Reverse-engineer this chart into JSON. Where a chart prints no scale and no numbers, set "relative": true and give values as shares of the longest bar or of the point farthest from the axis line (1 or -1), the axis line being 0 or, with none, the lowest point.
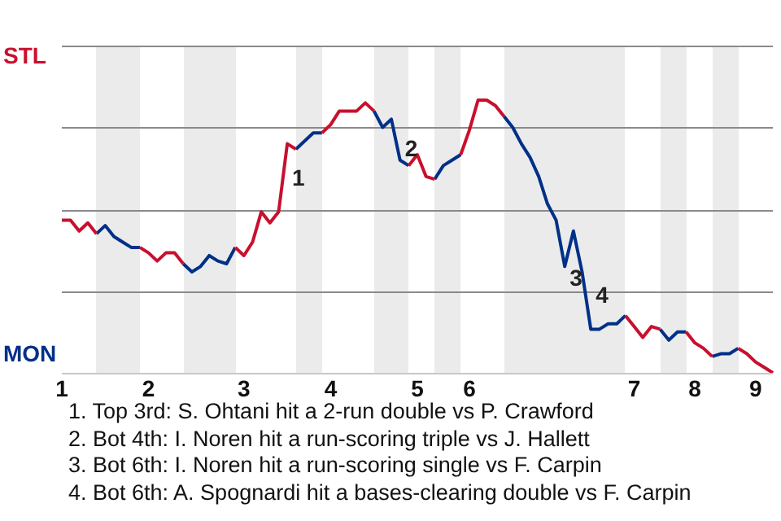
{
  "chart_data": {
    "type": "line",
    "relative": true,
    "categories": [
      "1",
      null,
      null,
      null,
      null,
      null,
      null,
      null,
      null,
      null,
      "2",
      null,
      null,
      null,
      null,
      null,
      null,
      null,
      null,
      null,
      null,
      "3",
      null,
      null,
      null,
      null,
      null,
      null,
      null,
      null,
      null,
      "4",
      null,
      null,
      null,
      null,
      null,
      null,
      null,
      null,
      null,
      "5",
      null,
      null,
      null,
      null,
      null,
      "6",
      null,
      null,
      null,
      null,
      null,
      null,
      null,
      null,
      null,
      null,
      null,
      null,
      null,
      null,
      null,
      null,
      null,
      null,
      "7",
      null,
      null,
      null,
      null,
      null,
      null,
      "8",
      null,
      null,
      null,
      null,
      null,
      null,
      "9",
      null,
      null
    ],
    "series": [
      {
        "color": "#c8102e",
        "values": [
          0.56,
          0.56,
          0.52,
          0.55,
          0.51,
          null,
          null,
          null,
          null,
          0.46,
          0.44,
          0.41,
          0.44,
          0.44,
          0.4,
          null,
          null,
          null,
          null,
          null,
          0.46,
          0.43,
          0.48,
          0.59,
          0.55,
          0.59,
          0.84,
          0.82,
          null,
          null,
          0.88,
          0.91,
          0.96,
          0.96,
          0.96,
          0.99,
          0.96,
          null,
          null,
          null,
          0.76,
          0.8,
          0.72,
          0.71,
          null,
          null,
          0.8,
          0.89,
          1,
          1,
          0.98,
          0.94,
          null,
          null,
          null,
          null,
          null,
          null,
          null,
          null,
          null,
          null,
          null,
          null,
          null,
          0.21,
          0.17,
          0.13,
          0.17,
          0.16,
          null,
          null,
          0.15,
          0.11,
          0.09,
          0.06,
          null,
          null,
          0.09,
          0.07,
          0.04,
          0.02,
          0
        ]
      },
      {
        "color": "#003087",
        "values": [
          null,
          null,
          null,
          null,
          0.51,
          0.54,
          0.5,
          0.48,
          0.46,
          0.46,
          null,
          null,
          null,
          null,
          0.4,
          0.37,
          0.39,
          0.43,
          0.41,
          0.4,
          0.46,
          null,
          null,
          null,
          null,
          null,
          null,
          0.82,
          0.85,
          0.88,
          0.88,
          null,
          null,
          null,
          null,
          null,
          0.96,
          0.9,
          0.93,
          0.78,
          0.76,
          null,
          null,
          0.71,
          0.76,
          0.78,
          0.8,
          null,
          null,
          null,
          null,
          0.94,
          0.9,
          0.84,
          0.79,
          0.72,
          0.62,
          0.56,
          0.39,
          0.52,
          0.37,
          0.16,
          0.16,
          0.18,
          0.18,
          0.21,
          null,
          null,
          null,
          0.16,
          0.12,
          0.15,
          0.15,
          null,
          null,
          0.06,
          0.07,
          0.07,
          0.09,
          null,
          null,
          null,
          null
        ]
      }
    ],
    "grid": true,
    "marker": "none",
    "annotations": [
      "STL",
      "MON",
      "1",
      "2",
      "3",
      "4",
      "1. Top 3rd: S. Ohtani hit a 2-run double vs P. Crawford",
      "2. Bot 4th: I. Noren hit a run-scoring triple vs J. Hallett",
      "3. Bot 6th: I. Noren hit a run-scoring single vs F. Carpin",
      "4. Bot 6th: A. Spognardi hit a bases-clearing double vs F. Carpin"
    ]
  }
}
